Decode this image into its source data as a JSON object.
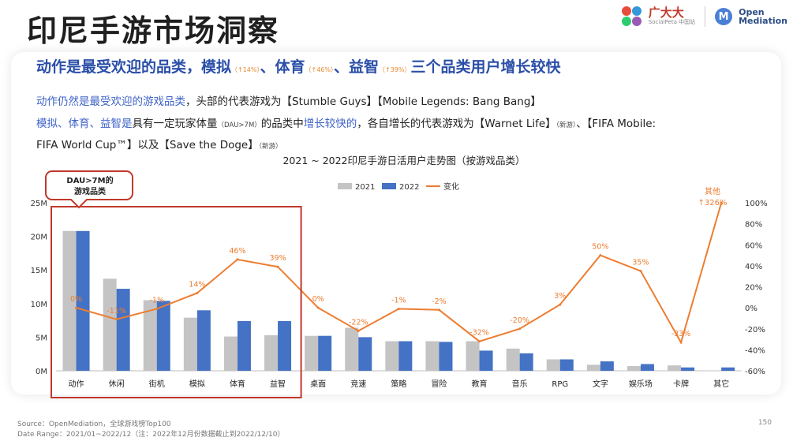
{
  "slide": {
    "title": "印尼手游市场洞察",
    "page_number": "150",
    "brand": {
      "name": "广大大",
      "sub": "SocialPeta 中国站"
    },
    "partner": {
      "name_line1": "Open",
      "name_line2": "Mediation"
    }
  },
  "headline": {
    "p1": "动作是最受欢迎的品类，模拟",
    "p1_small": "（↑14%）",
    "p2": "、体育",
    "p2_small": "（↑46%）",
    "p3": "、益智",
    "p3_small": "（↑39%）",
    "p4": "三个品类用户增长较快"
  },
  "body": {
    "l1_blue": "动作仍然是最受欢迎的游戏品类",
    "l1_rest": "，头部的代表游戏为【Stumble Guys】【Mobile Legends: Bang Bang】",
    "l2_blue1": "模拟、体育、益智是",
    "l2_rest1": "具有一定玩家体量",
    "l2_small1": "（DAU>7M）",
    "l2_rest2": "的品类中",
    "l2_blue2": "增长较快的",
    "l2_rest3": "，各自增长的代表游戏为【Warnet Life】",
    "l2_small2": "（新游）",
    "l2_rest4": "、【FIFA Mobile:",
    "l3_rest": "FIFA World Cup™】以及【Save the Doge】",
    "l3_small": "（新游）"
  },
  "footer": {
    "source": "Source：OpenMediation，全球游戏榜Top100",
    "date_range": "Date Range：2021/01~2022/12（注：2022年12月份数据截止到2022/12/10）"
  },
  "chart_data": {
    "type": "bar",
    "title": "2021 ~ 2022印尼手游日活用户走势图（按游戏品类）",
    "categories": [
      "动作",
      "休闲",
      "街机",
      "模拟",
      "体育",
      "益智",
      "桌面",
      "竞速",
      "策略",
      "冒险",
      "教育",
      "音乐",
      "RPG",
      "文字",
      "娱乐场",
      "卡牌",
      "其它"
    ],
    "series": [
      {
        "name": "2021",
        "axis": "left",
        "color": "#c4c4c4",
        "values": [
          20.8,
          13.7,
          10.5,
          7.9,
          5.1,
          5.3,
          5.2,
          6.4,
          4.4,
          4.4,
          4.4,
          3.3,
          1.7,
          0.9,
          0.7,
          0.8,
          0.05
        ]
      },
      {
        "name": "2022",
        "axis": "left",
        "color": "#4472c4",
        "values": [
          20.8,
          12.2,
          10.4,
          9.0,
          7.4,
          7.4,
          5.2,
          5.0,
          4.4,
          4.3,
          3.0,
          2.6,
          1.7,
          1.4,
          1.0,
          0.5,
          0.5
        ]
      },
      {
        "name": "变化",
        "axis": "right",
        "type": "line",
        "color": "#ed7d31",
        "values": [
          0,
          -11,
          -1,
          14,
          46,
          39,
          0,
          -22,
          -1,
          -2,
          -32,
          -20,
          3,
          50,
          35,
          -33,
          100
        ],
        "labels": [
          "0%",
          "-11%",
          "-1%",
          "14%",
          "46%",
          "39%",
          "0%",
          "-22%",
          "-1%",
          "-2%",
          "-32%",
          "-20%",
          "3%",
          "50%",
          "35%",
          "-33%",
          ""
        ]
      }
    ],
    "left_axis": {
      "ylim": [
        0,
        25
      ],
      "ticks": [
        0,
        5,
        10,
        15,
        20,
        25
      ],
      "tick_labels": [
        "0M",
        "5M",
        "10M",
        "15M",
        "20M",
        "25M"
      ]
    },
    "right_axis": {
      "ylim": [
        -60,
        100
      ],
      "ticks": [
        -60,
        -40,
        -20,
        0,
        20,
        40,
        60,
        80,
        100
      ],
      "tick_labels": [
        "-60%",
        "-40%",
        "-20%",
        "0%",
        "20%",
        "40%",
        "60%",
        "80%",
        "100%"
      ]
    },
    "legend": {
      "placement": "top-center"
    },
    "grid": false,
    "annotations": {
      "box_label": "DAU>7M的\n游戏品类",
      "other_label_1": "其他",
      "other_label_2": "↑326%"
    }
  },
  "colors": {
    "title_blue": "#2b4fa8",
    "body_blue": "#3f63c8",
    "highlight_red": "#c0392b",
    "orange": "#ed7d31"
  }
}
